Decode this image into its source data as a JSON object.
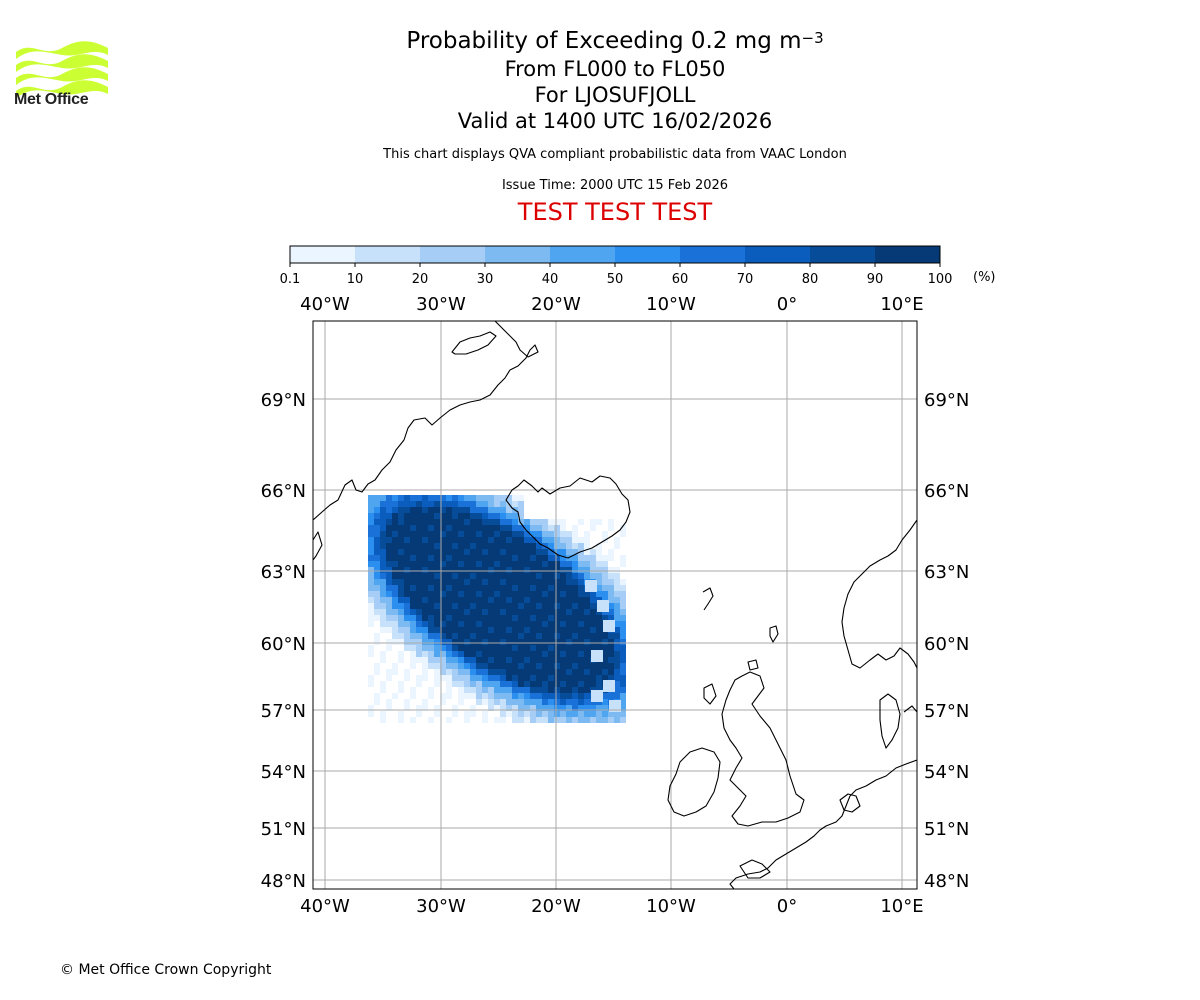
{
  "logo": {
    "name": "Met Office",
    "color": "#ccff33"
  },
  "title": {
    "main": "Probability of Exceeding 0.2 mg m",
    "main_superscript": "−3",
    "levels": "From FL000 to FL050",
    "volcano": "For LJOSUFJOLL",
    "valid": "Valid at 1400 UTC 16/02/2026"
  },
  "note": "This chart displays QVA compliant probabilistic data from VAAC London",
  "issue_time": "Issue Time: 2000 UTC 15 Feb 2026",
  "test_banner": "TEST TEST TEST",
  "test_color": "#dd0000",
  "colorbar": {
    "ticks": [
      "0.1",
      "10",
      "20",
      "30",
      "40",
      "50",
      "60",
      "70",
      "80",
      "90",
      "100"
    ],
    "unit": "(%)",
    "colors": [
      "#ebf5ff",
      "#c8e1fa",
      "#a5cdf5",
      "#7dbaf2",
      "#50a5f0",
      "#2b8ff0",
      "#1a72d8",
      "#0a5cbd",
      "#074c98",
      "#053a77"
    ]
  },
  "map": {
    "lon_labels": [
      "40°W",
      "30°W",
      "20°W",
      "10°W",
      "0°",
      "10°E"
    ],
    "lat_labels": [
      "69°N",
      "66°N",
      "63°N",
      "60°N",
      "57°N",
      "54°N",
      "51°N",
      "48°N"
    ],
    "gridline_color": "#aaaaaa",
    "coast_color": "#000000"
  },
  "footer": "© Met Office Crown Copyright"
}
